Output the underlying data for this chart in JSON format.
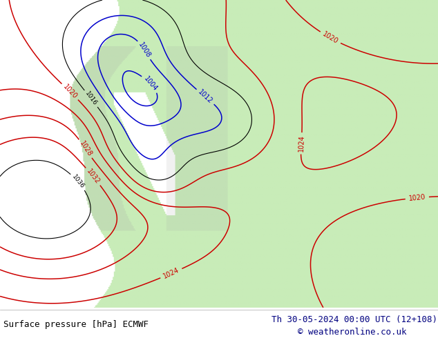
{
  "title_left": "Surface pressure [hPa] ECMWF",
  "title_right": "Th 30-05-2024 00:00 UTC (12+108)",
  "copyright": "© weatheronline.co.uk",
  "bg_color": "#ffffff",
  "ocean_color": "#ffffff",
  "land_color": "#c8ecb8",
  "mountain_color": "#b0b0b0",
  "figsize": [
    6.34,
    4.9
  ],
  "dpi": 100,
  "title_fontsize": 9,
  "copyright_fontsize": 9,
  "title_color": "#000000",
  "date_color": "#000080",
  "copyright_color": "#000080",
  "contour_black_color": "#000000",
  "contour_blue_color": "#0000cc",
  "contour_red_color": "#cc0000",
  "contour_lw": 0.8,
  "contour_lw_special": 1.1
}
